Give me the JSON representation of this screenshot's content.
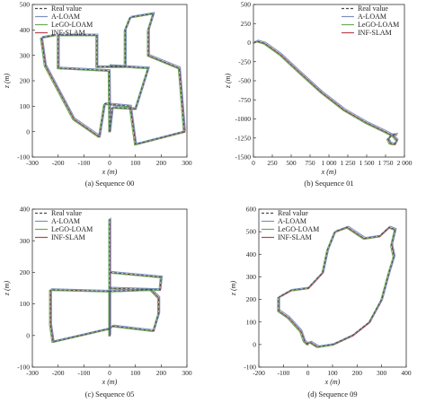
{
  "figure": {
    "legend_labels": [
      "Real value",
      "A-LOAM",
      "LeGO-LOAM",
      "INF-SLAM"
    ],
    "series_colors": {
      "Real value": "#4a4a4a",
      "A-LOAM": "#7b8fbf",
      "LeGO-LOAM": "#6aaa5a",
      "INF-SLAM": "#b5454a"
    }
  },
  "chart_data": [
    {
      "type": "line",
      "caption": "(a) Sequence 00",
      "xlabel": "x (m)",
      "ylabel": "z (m)",
      "xlim": [
        -300,
        300
      ],
      "ylim": [
        -100,
        500
      ],
      "xticks": [
        -300,
        -200,
        -100,
        0,
        100,
        200,
        300
      ],
      "yticks": [
        -100,
        0,
        100,
        200,
        300,
        400,
        500
      ],
      "legend_position": "top-left",
      "series": [
        {
          "name": "Real value",
          "values": "trajectory",
          "style": "dashed"
        },
        {
          "name": "A-LOAM",
          "values": "trajectory"
        },
        {
          "name": "LeGO-LOAM",
          "values": "trajectory"
        },
        {
          "name": "INF-SLAM",
          "values": "trajectory"
        }
      ],
      "trajectory": [
        [
          [
            0,
            0
          ],
          [
            -2,
            240
          ],
          [
            -200,
            250
          ],
          [
            -200,
            380
          ],
          [
            -50,
            380
          ],
          [
            -50,
            255
          ],
          [
            60,
            255
          ],
          [
            60,
            400
          ],
          [
            80,
            450
          ],
          [
            170,
            465
          ],
          [
            150,
            400
          ],
          [
            150,
            300
          ],
          [
            270,
            250
          ],
          [
            290,
            0
          ],
          [
            100,
            -50
          ],
          [
            80,
            100
          ],
          [
            -20,
            110
          ],
          [
            -40,
            -20
          ],
          [
            -140,
            50
          ],
          [
            -250,
            260
          ],
          [
            -265,
            370
          ],
          [
            -210,
            380
          ]
        ],
        [
          [
            0,
            0
          ],
          [
            10,
            95
          ],
          [
            100,
            90
          ],
          [
            150,
            250
          ],
          [
            -5,
            260
          ]
        ]
      ]
    },
    {
      "type": "line",
      "caption": "(b) Sequence 01",
      "xlabel": "x (m)",
      "ylabel": "z (m)",
      "xlim": [
        0,
        2000
      ],
      "ylim": [
        -1500,
        500
      ],
      "xticks": [
        0,
        250,
        500,
        750,
        1000,
        1250,
        1500,
        1750,
        2000
      ],
      "xticklabels": [
        "0",
        "250",
        "500",
        "750",
        "1 000",
        "1 250",
        "1 500",
        "1 750",
        "2 000"
      ],
      "yticks": [
        -1500,
        -1250,
        -1000,
        -750,
        -500,
        -250,
        0,
        250,
        500
      ],
      "legend_position": "top-right",
      "series": [
        {
          "name": "Real value",
          "values": "trajectory",
          "style": "dashed"
        },
        {
          "name": "A-LOAM",
          "values": "trajectory"
        },
        {
          "name": "LeGO-LOAM",
          "values": "trajectory"
        },
        {
          "name": "INF-SLAM",
          "values": "trajectory"
        }
      ],
      "trajectory": [
        [
          [
            0,
            0
          ],
          [
            50,
            20
          ],
          [
            150,
            -10
          ],
          [
            350,
            -150
          ],
          [
            600,
            -380
          ],
          [
            900,
            -650
          ],
          [
            1200,
            -880
          ],
          [
            1500,
            -1050
          ],
          [
            1750,
            -1170
          ],
          [
            1850,
            -1220
          ],
          [
            1900,
            -1280
          ],
          [
            1870,
            -1330
          ],
          [
            1810,
            -1320
          ],
          [
            1780,
            -1260
          ],
          [
            1830,
            -1210
          ],
          [
            1900,
            -1200
          ]
        ]
      ]
    },
    {
      "type": "line",
      "caption": "(c) Sequence  05",
      "xlabel": "x (m)",
      "ylabel": "z (m)",
      "xlim": [
        -300,
        300
      ],
      "ylim": [
        -100,
        400
      ],
      "xticks": [
        -300,
        -200,
        -100,
        0,
        100,
        200,
        300
      ],
      "yticks": [
        -100,
        0,
        100,
        200,
        300,
        400
      ],
      "legend_position": "top-left",
      "series": [
        {
          "name": "Real value",
          "values": "trajectory",
          "style": "dashed"
        },
        {
          "name": "A-LOAM",
          "values": "trajectory"
        },
        {
          "name": "LeGO-LOAM",
          "values": "trajectory"
        },
        {
          "name": "INF-SLAM",
          "values": "trajectory"
        }
      ],
      "trajectory": [
        [
          [
            0,
            370
          ],
          [
            0,
            0
          ],
          [
            0,
            140
          ],
          [
            -230,
            145
          ],
          [
            -230,
            35
          ],
          [
            -220,
            -20
          ],
          [
            -10,
            20
          ],
          [
            0,
            20
          ],
          [
            0,
            140
          ],
          [
            160,
            145
          ],
          [
            190,
            120
          ],
          [
            190,
            70
          ],
          [
            170,
            15
          ],
          [
            10,
            30
          ],
          [
            -5,
            20
          ]
        ],
        [
          [
            0,
            200
          ],
          [
            200,
            185
          ],
          [
            195,
            145
          ],
          [
            0,
            150
          ]
        ]
      ]
    },
    {
      "type": "line",
      "caption": "(d) Sequence  09",
      "xlabel": "x (m)",
      "ylabel": "z (m)",
      "xlim": [
        -200,
        400
      ],
      "ylim": [
        -100,
        600
      ],
      "xticks": [
        -200,
        -100,
        0,
        100,
        200,
        300,
        400
      ],
      "yticks": [
        -100,
        0,
        100,
        200,
        300,
        400,
        500,
        600
      ],
      "legend_position": "top-left",
      "series": [
        {
          "name": "Real value",
          "values": "trajectory",
          "style": "dashed"
        },
        {
          "name": "A-LOAM",
          "values": "trajectory"
        },
        {
          "name": "LeGO-LOAM",
          "values": "trajectory"
        },
        {
          "name": "INF-SLAM",
          "values": "trajectory"
        }
      ],
      "trajectory": [
        [
          [
            0,
            0
          ],
          [
            -15,
            15
          ],
          [
            -30,
            60
          ],
          [
            -80,
            120
          ],
          [
            -120,
            150
          ],
          [
            -120,
            210
          ],
          [
            -70,
            240
          ],
          [
            0,
            250
          ],
          [
            60,
            320
          ],
          [
            80,
            420
          ],
          [
            110,
            500
          ],
          [
            160,
            520
          ],
          [
            230,
            470
          ],
          [
            290,
            480
          ],
          [
            330,
            520
          ],
          [
            355,
            510
          ],
          [
            340,
            440
          ],
          [
            350,
            390
          ],
          [
            330,
            320
          ],
          [
            300,
            200
          ],
          [
            250,
            100
          ],
          [
            180,
            40
          ],
          [
            100,
            0
          ],
          [
            40,
            -10
          ],
          [
            10,
            10
          ],
          [
            -5,
            5
          ]
        ]
      ]
    }
  ]
}
